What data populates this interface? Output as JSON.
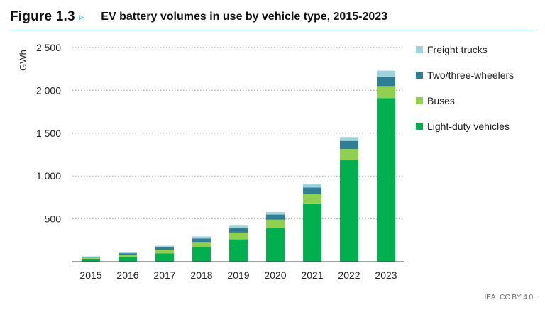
{
  "header": {
    "figure_label": "Figure 1.3",
    "arrow_glyph": "▹",
    "title": "EV battery volumes in use by vehicle type, 2015-2023"
  },
  "credit": "IEA. CC BY 4.0.",
  "colors": {
    "light_duty": "#00b04f",
    "buses": "#8fd14f",
    "two_three_wheelers": "#2e7f96",
    "freight_trucks": "#9dd4e0",
    "grid": "#9e9e9e",
    "axis": "#444444",
    "rule": "#5aa9b8"
  },
  "chart_data": {
    "type": "bar",
    "stacked": true,
    "title": "EV battery volumes in use by vehicle type, 2015-2023",
    "xlabel": "",
    "ylabel": "GWh",
    "ylim": [
      0,
      2500
    ],
    "yticks": [
      500,
      1000,
      1500,
      2000,
      2500
    ],
    "ytick_labels": [
      "500",
      "1 000",
      "1 500",
      "2 000",
      "2 500"
    ],
    "grid": true,
    "legend_position": "right",
    "categories": [
      "2015",
      "2016",
      "2017",
      "2018",
      "2019",
      "2020",
      "2021",
      "2022",
      "2023"
    ],
    "series": [
      {
        "name": "Light-duty vehicles",
        "color": "#00b04f",
        "values": [
          35,
          55,
          95,
          170,
          260,
          390,
          680,
          1190,
          1910
        ]
      },
      {
        "name": "Buses",
        "color": "#8fd14f",
        "values": [
          12,
          25,
          45,
          60,
          80,
          100,
          110,
          125,
          140
        ]
      },
      {
        "name": "Two/three-wheelers",
        "color": "#2e7f96",
        "values": [
          10,
          18,
          30,
          40,
          50,
          60,
          75,
          95,
          105
        ]
      },
      {
        "name": "Freight trucks",
        "color": "#9dd4e0",
        "values": [
          5,
          10,
          15,
          25,
          30,
          30,
          40,
          45,
          75
        ]
      }
    ]
  },
  "legend": {
    "items": [
      {
        "label": "Freight trucks",
        "color": "#9dd4e0"
      },
      {
        "label": "Two/three-wheelers",
        "color": "#2e7f96"
      },
      {
        "label": "Buses",
        "color": "#8fd14f"
      },
      {
        "label": "Light-duty vehicles",
        "color": "#00b04f"
      }
    ]
  }
}
